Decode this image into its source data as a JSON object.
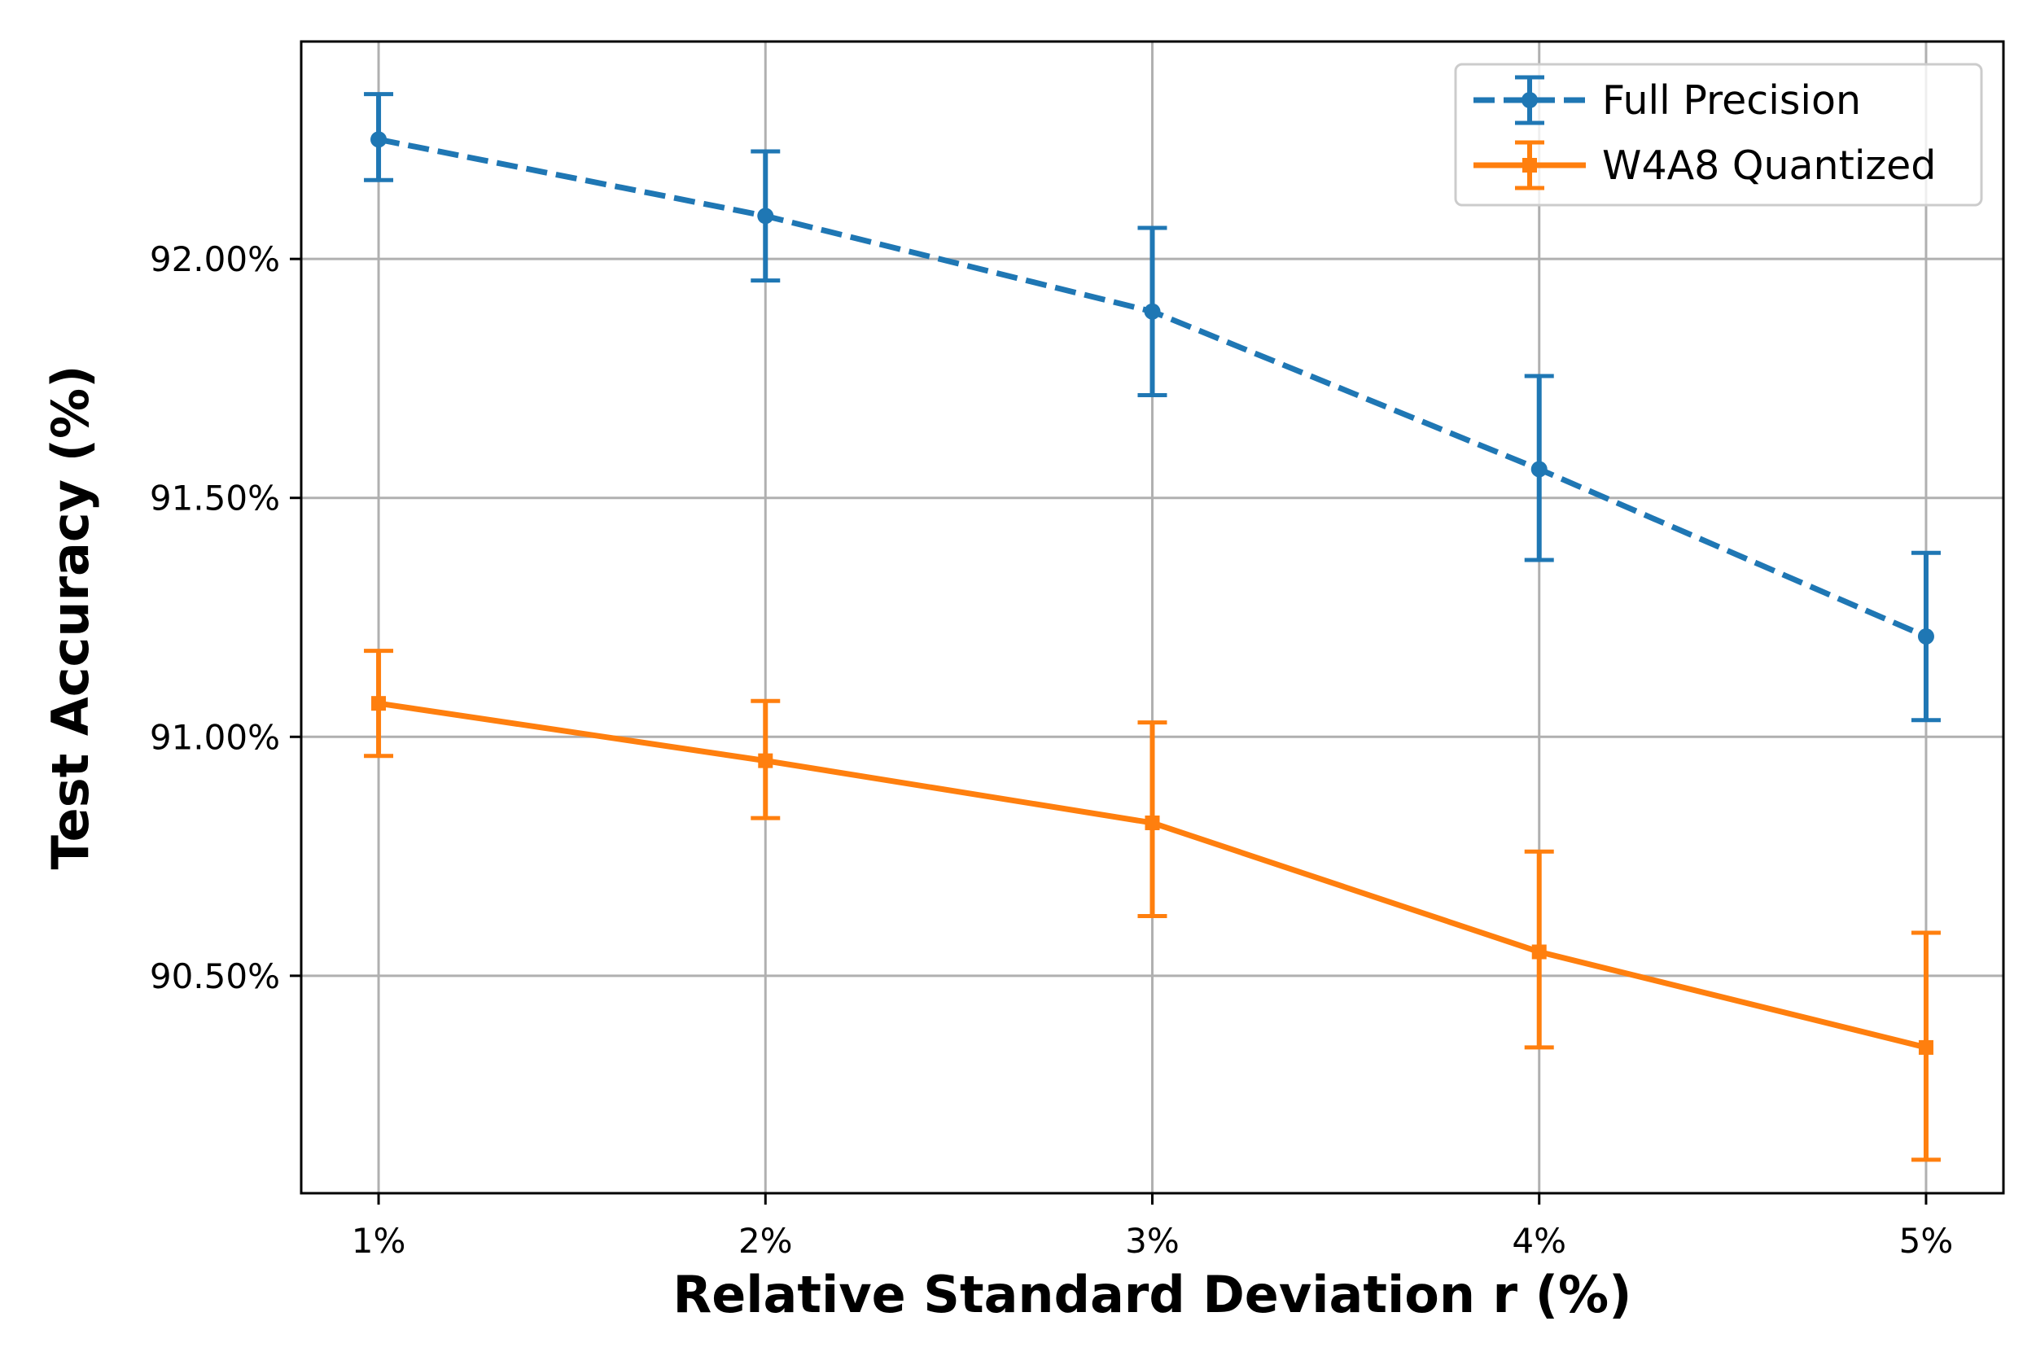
{
  "chart_data": {
    "type": "line",
    "title": "",
    "xlabel": "Relative Standard Deviation r (%)",
    "ylabel": "Test Accuracy (%)",
    "categories": [
      "1%",
      "2%",
      "3%",
      "4%",
      "5%"
    ],
    "x": [
      1,
      2,
      3,
      4,
      5
    ],
    "xlim": [
      0.8,
      5.2
    ],
    "ylim": [
      90.045,
      92.455
    ],
    "yticks": [
      90.5,
      91.0,
      91.5,
      92.0
    ],
    "ytick_labels": [
      "90.50%",
      "91.00%",
      "91.50%",
      "92.00%"
    ],
    "grid": true,
    "legend_position": "top-right",
    "series": [
      {
        "name": "Full Precision",
        "color": "#1f77b4",
        "linestyle": "dashed",
        "marker": "circle",
        "values": [
          92.25,
          92.09,
          91.89,
          91.56,
          91.21
        ],
        "err_low": [
          92.165,
          91.955,
          91.715,
          91.37,
          91.035
        ],
        "err_high": [
          92.345,
          92.225,
          92.065,
          91.755,
          91.385
        ]
      },
      {
        "name": "W4A8 Quantized",
        "color": "#ff7f0e",
        "linestyle": "solid",
        "marker": "square",
        "values": [
          91.07,
          90.95,
          90.82,
          90.55,
          90.35
        ],
        "err_low": [
          90.96,
          90.83,
          90.625,
          90.35,
          90.115
        ],
        "err_high": [
          91.18,
          91.075,
          91.03,
          90.76,
          90.59
        ]
      }
    ]
  }
}
